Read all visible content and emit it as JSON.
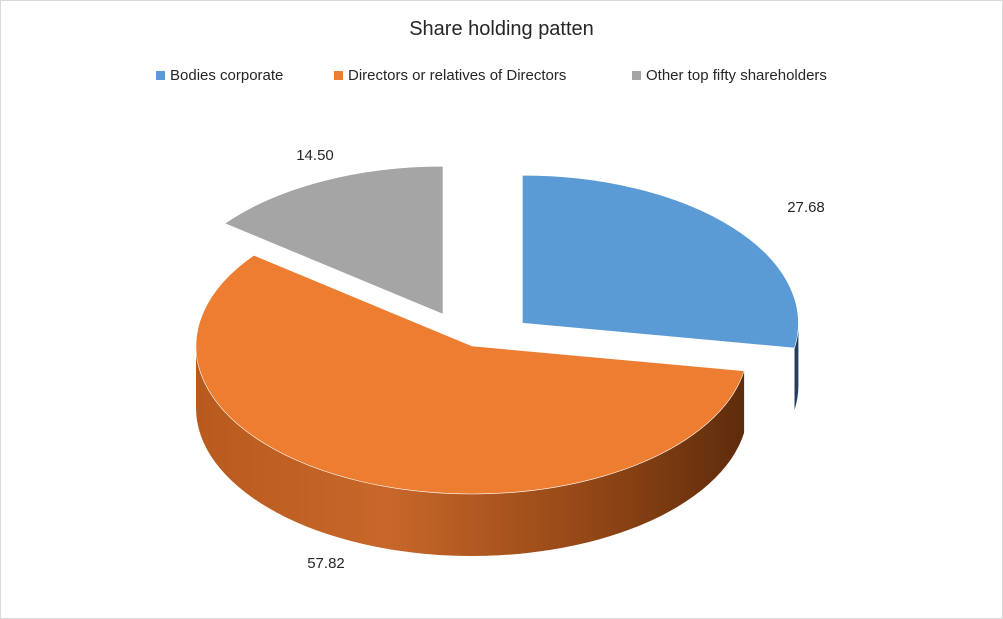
{
  "chart_data": {
    "type": "pie",
    "title": "Share holding patten",
    "style": "3d-exploded",
    "categories": [
      "Bodies corporate",
      "Directors or relatives of Directors",
      "Other top fifty shareholders"
    ],
    "values": [
      27.68,
      57.82,
      14.5
    ],
    "value_labels": [
      "27.68",
      "57.82",
      "14.50"
    ],
    "exploded": [
      true,
      false,
      true
    ],
    "colors": [
      "#5B9BD5",
      "#ED7D31",
      "#A5A5A5"
    ],
    "legend_position": "top"
  }
}
